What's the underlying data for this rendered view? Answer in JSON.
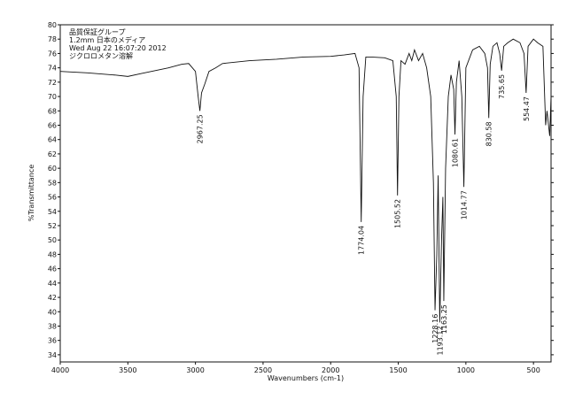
{
  "chart_data": {
    "type": "line",
    "header_lines": [
      "品質保証グループ",
      "1.2mm 日本のメディア",
      "Wed Aug 22 16:07:20 2012",
      "ジクロロメタン溶解"
    ],
    "x_label": "Wavenumbers (cm-1)",
    "y_label": "%Transmittance",
    "xlim": [
      4000,
      370
    ],
    "ylim": [
      33,
      80
    ],
    "xticks": [
      4000,
      3500,
      3000,
      2500,
      2000,
      1500,
      1000,
      500
    ],
    "yticks": [
      34,
      36,
      38,
      40,
      42,
      44,
      46,
      48,
      50,
      52,
      54,
      56,
      58,
      60,
      62,
      64,
      66,
      68,
      70,
      72,
      74,
      76,
      78,
      80
    ],
    "color": "#111111",
    "x": [
      4000,
      3800,
      3600,
      3500,
      3400,
      3200,
      3100,
      3050,
      3000,
      2980,
      2967.25,
      2955,
      2930,
      2900,
      2850,
      2800,
      2600,
      2400,
      2200,
      2000,
      1900,
      1820,
      1790,
      1774.04,
      1760,
      1740,
      1700,
      1600,
      1540,
      1515,
      1505.52,
      1495,
      1480,
      1450,
      1420,
      1400,
      1380,
      1350,
      1320,
      1290,
      1260,
      1240,
      1228.16,
      1215,
      1205,
      1193.12,
      1180,
      1170,
      1163.25,
      1150,
      1130,
      1110,
      1090,
      1080.61,
      1070,
      1050,
      1030,
      1014.77,
      1000,
      950,
      900,
      860,
      840,
      830.58,
      820,
      800,
      770,
      750,
      735.65,
      720,
      690,
      650,
      600,
      570,
      554.47,
      540,
      500,
      470,
      430,
      410,
      400,
      380,
      370
    ],
    "values": [
      73.5,
      73.3,
      73.0,
      72.8,
      73.2,
      74.0,
      74.5,
      74.6,
      73.5,
      70,
      68.0,
      70.5,
      71.8,
      73.5,
      74.0,
      74.6,
      75.0,
      75.2,
      75.5,
      75.6,
      75.8,
      76.0,
      74,
      52.5,
      70,
      75.5,
      75.5,
      75.4,
      75.0,
      70,
      56.2,
      70,
      75,
      74.5,
      76,
      75,
      76.5,
      75,
      76,
      74,
      70,
      58,
      40.2,
      48,
      59,
      38.5,
      50,
      56,
      41.5,
      60,
      70,
      73,
      71,
      64.7,
      72,
      75,
      70,
      57.4,
      74,
      76.5,
      77,
      76,
      74,
      67.0,
      74.5,
      77,
      77.5,
      76,
      73.6,
      77,
      77.5,
      78,
      77.5,
      76,
      70.5,
      77,
      78,
      77.5,
      77,
      66,
      68,
      64.5,
      70
    ],
    "peaks": [
      {
        "x": 2967.25,
        "y": 68.0
      },
      {
        "x": 1774.04,
        "y": 52.5
      },
      {
        "x": 1505.52,
        "y": 56.2
      },
      {
        "x": 1228.16,
        "y": 40.2
      },
      {
        "x": 1193.12,
        "y": 38.5
      },
      {
        "x": 1163.25,
        "y": 41.5
      },
      {
        "x": 1080.61,
        "y": 64.7
      },
      {
        "x": 1014.77,
        "y": 57.4
      },
      {
        "x": 830.58,
        "y": 67.0
      },
      {
        "x": 735.65,
        "y": 73.6
      },
      {
        "x": 554.47,
        "y": 70.5
      }
    ]
  }
}
